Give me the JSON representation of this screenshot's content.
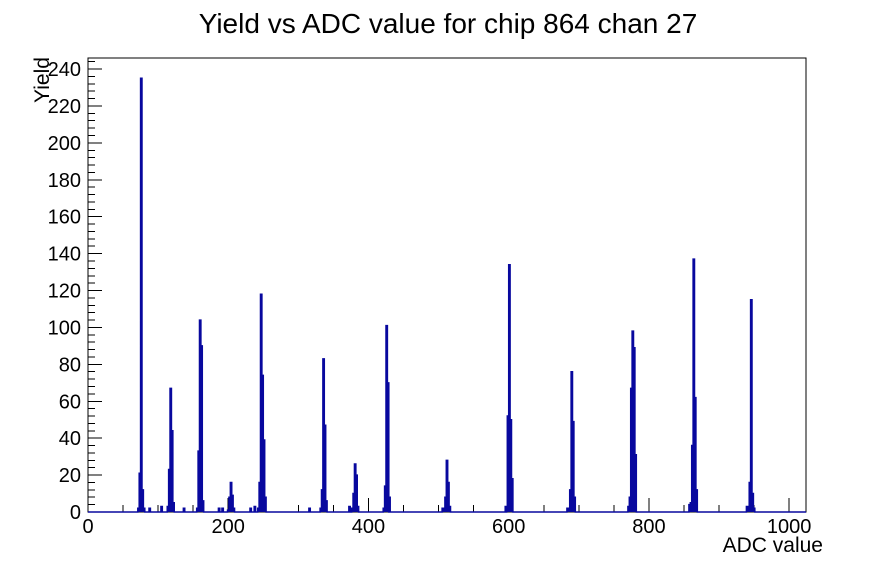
{
  "colors": {
    "hist_line": "#08089e",
    "axis": "#000000",
    "background": "#ffffff",
    "text": "#000000"
  },
  "chart_data": {
    "type": "bar",
    "style": "step-outline-histogram",
    "title": "Yield vs ADC value for chip 864 chan 27",
    "xlabel": "ADC value",
    "ylabel": "Yield",
    "xlim": [
      0,
      1024
    ],
    "ylim": [
      0,
      246
    ],
    "x_major_ticks": [
      0,
      200,
      400,
      600,
      800,
      1000
    ],
    "x_minor_step": 50,
    "y_major_step": 20,
    "y_minor_step": 4,
    "grid": false,
    "legend": false,
    "bin_width": 2,
    "peaks": [
      {
        "adc": 76,
        "bins": [
          2,
          21,
          235,
          12,
          2
        ]
      },
      {
        "adc": 118,
        "bins": [
          3,
          23,
          67,
          44,
          5
        ]
      },
      {
        "adc": 160,
        "bins": [
          2,
          33,
          104,
          90,
          6
        ]
      },
      {
        "adc": 204,
        "bins": [
          1,
          8,
          16,
          9,
          2
        ]
      },
      {
        "adc": 247,
        "bins": [
          2,
          16,
          118,
          74,
          39,
          8
        ]
      },
      {
        "adc": 336,
        "bins": [
          2,
          12,
          83,
          47,
          6
        ]
      },
      {
        "adc": 381,
        "bins": [
          2,
          10,
          26,
          20,
          3
        ]
      },
      {
        "adc": 426,
        "bins": [
          2,
          14,
          101,
          70,
          8
        ]
      },
      {
        "adc": 512,
        "bins": [
          2,
          8,
          28,
          16,
          3
        ]
      },
      {
        "adc": 601,
        "bins": [
          3,
          52,
          134,
          50,
          18
        ]
      },
      {
        "adc": 690,
        "bins": [
          2,
          12,
          76,
          49,
          8
        ]
      },
      {
        "adc": 777,
        "bins": [
          8,
          67,
          98,
          89,
          31
        ]
      },
      {
        "adc": 864,
        "bins": [
          5,
          36,
          137,
          62,
          12
        ]
      },
      {
        "adc": 946,
        "bins": [
          2,
          16,
          115,
          10,
          2
        ]
      }
    ],
    "baseline_blips": [
      {
        "adc": 88,
        "h": 2
      },
      {
        "adc": 105,
        "h": 3
      },
      {
        "adc": 137,
        "h": 2
      },
      {
        "adc": 187,
        "h": 2
      },
      {
        "adc": 192,
        "h": 2
      },
      {
        "adc": 232,
        "h": 2
      },
      {
        "adc": 238,
        "h": 3
      },
      {
        "adc": 316,
        "h": 2
      },
      {
        "adc": 373,
        "h": 3
      },
      {
        "adc": 430,
        "h": 4
      },
      {
        "adc": 506,
        "h": 2
      },
      {
        "adc": 596,
        "h": 3
      },
      {
        "adc": 684,
        "h": 2
      },
      {
        "adc": 771,
        "h": 3
      },
      {
        "adc": 858,
        "h": 4
      },
      {
        "adc": 940,
        "h": 3
      }
    ]
  }
}
